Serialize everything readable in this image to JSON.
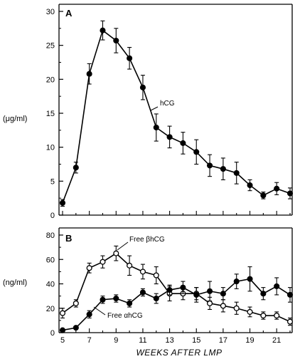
{
  "chart_data": [
    {
      "type": "line",
      "panel": "A",
      "ylabel": "(μg/ml)",
      "xlabel": "",
      "xlim": [
        5,
        22
      ],
      "ylim": [
        0,
        30
      ],
      "xticks": [
        5,
        7,
        9,
        11,
        13,
        15,
        17,
        19,
        21
      ],
      "yticks": [
        0,
        5,
        10,
        15,
        20,
        25,
        30
      ],
      "series": [
        {
          "name": "hCG",
          "marker": "filled",
          "x": [
            5,
            6,
            7,
            8,
            9,
            10,
            11,
            12,
            13,
            14,
            15,
            16,
            17,
            18,
            19,
            20,
            21,
            22
          ],
          "y": [
            1.8,
            7.0,
            20.8,
            27.2,
            25.7,
            23.1,
            18.8,
            12.9,
            11.5,
            10.6,
            9.3,
            7.3,
            6.8,
            6.2,
            4.4,
            2.9,
            3.9,
            3.2
          ],
          "err": [
            0.5,
            0.8,
            1.5,
            1.4,
            1.8,
            1.6,
            1.8,
            2.0,
            1.6,
            1.6,
            1.8,
            1.6,
            1.6,
            1.6,
            0.8,
            0.5,
            0.9,
            0.8
          ]
        }
      ]
    },
    {
      "type": "line",
      "panel": "B",
      "ylabel": "(ng/ml)",
      "xlabel": "WEEKS AFTER LMP",
      "xlim": [
        5,
        22
      ],
      "ylim": [
        0,
        80
      ],
      "xticks": [
        5,
        7,
        9,
        11,
        13,
        15,
        17,
        19,
        21
      ],
      "yticks": [
        0,
        20,
        40,
        60,
        80
      ],
      "series": [
        {
          "name": "Free βhCG",
          "marker": "open",
          "x": [
            5,
            6,
            7,
            8,
            9,
            10,
            11,
            12,
            13,
            14,
            15,
            16,
            17,
            18,
            19,
            20,
            21,
            22
          ],
          "y": [
            16,
            24,
            53,
            58,
            65,
            55,
            50,
            47,
            32,
            32,
            32,
            24,
            22,
            20,
            17,
            14,
            14,
            9
          ],
          "err": [
            4,
            3,
            4,
            5,
            6,
            8,
            6,
            7,
            6,
            5,
            5,
            5,
            5,
            5,
            4,
            3,
            3,
            3
          ]
        },
        {
          "name": "Free αhCG",
          "marker": "filled",
          "x": [
            5,
            6,
            7,
            8,
            9,
            10,
            11,
            12,
            13,
            14,
            15,
            16,
            17,
            18,
            19,
            20,
            21,
            22
          ],
          "y": [
            2,
            4,
            15,
            27,
            28,
            24,
            33,
            28,
            35,
            37,
            31,
            34,
            32,
            42,
            44,
            32,
            38,
            31
          ],
          "err": [
            1,
            1,
            3,
            3,
            3,
            3,
            3,
            4,
            4,
            5,
            6,
            8,
            5,
            6,
            10,
            5,
            7,
            6
          ]
        }
      ]
    }
  ]
}
